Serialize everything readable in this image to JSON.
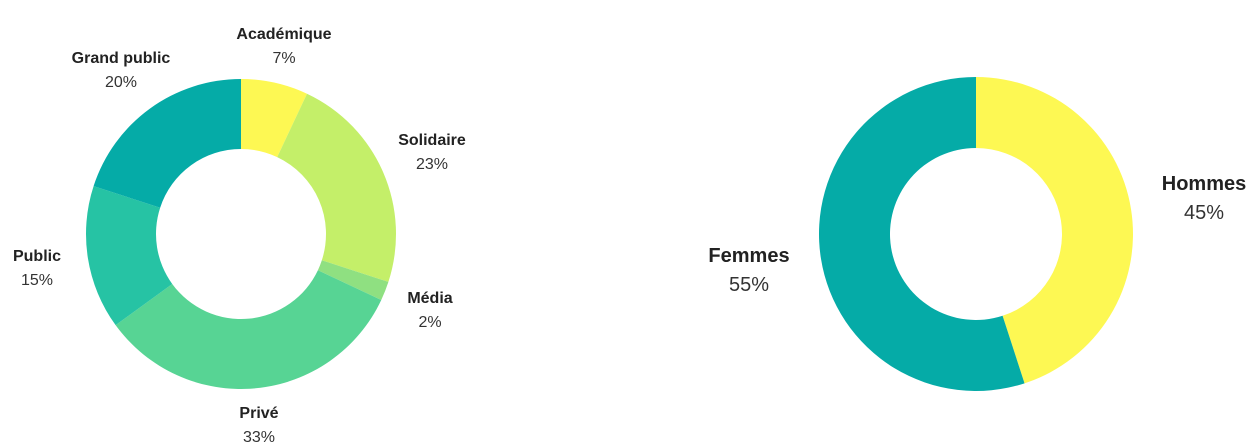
{
  "chart_data": [
    {
      "type": "pie",
      "donut": true,
      "title": "",
      "slices": [
        {
          "label": "Académique",
          "value": 7,
          "value_label": "7%",
          "color": "#fdf853"
        },
        {
          "label": "Solidaire",
          "value": 23,
          "value_label": "23%",
          "color": "#c4ef69"
        },
        {
          "label": "Média",
          "value": 2,
          "value_label": "2%",
          "color": "#8fe081"
        },
        {
          "label": "Privé",
          "value": 33,
          "value_label": "33%",
          "color": "#57d494"
        },
        {
          "label": "Public",
          "value": 15,
          "value_label": "15%",
          "color": "#26c3a4"
        },
        {
          "label": "Grand public",
          "value": 20,
          "value_label": "20%",
          "color": "#05aba7"
        }
      ],
      "start": "top",
      "direction": "clockwise",
      "legend": "none"
    },
    {
      "type": "pie",
      "donut": true,
      "title": "",
      "slices": [
        {
          "label": "Hommes",
          "value": 45,
          "value_label": "45%",
          "color": "#fdf853"
        },
        {
          "label": "Femmes",
          "value": 55,
          "value_label": "55%",
          "color": "#05aba7"
        }
      ],
      "start": "top",
      "direction": "clockwise",
      "legend": "none"
    }
  ]
}
